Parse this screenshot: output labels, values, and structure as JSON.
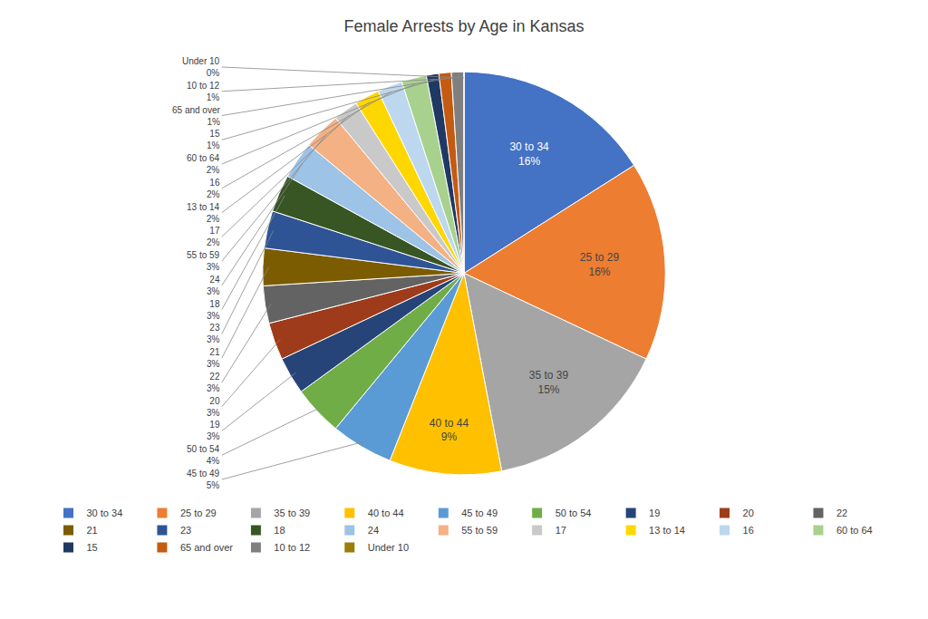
{
  "chart_data": {
    "type": "pie",
    "title": "Female Arrests by Age in Kansas",
    "categories": [
      "30 to 34",
      "25 to 29",
      "35 to 39",
      "40 to 44",
      "45 to 49",
      "50 to 54",
      "19",
      "20",
      "22",
      "21",
      "23",
      "18",
      "24",
      "55 to 59",
      "17",
      "13 to 14",
      "16",
      "60 to 64",
      "15",
      "65 and over",
      "10 to 12",
      "Under 10"
    ],
    "values": [
      16,
      16,
      15,
      9,
      5,
      4,
      3,
      3,
      3,
      3,
      3,
      3,
      3,
      3,
      2,
      2,
      2,
      2,
      1,
      1,
      1,
      0
    ],
    "value_labels": [
      "16%",
      "16%",
      "15%",
      "9%",
      "5%",
      "4%",
      "3%",
      "3%",
      "3%",
      "3%",
      "3%",
      "3%",
      "3%",
      "3%",
      "2%",
      "2%",
      "2%",
      "2%",
      "1%",
      "1%",
      "1%",
      "0%"
    ],
    "colors": [
      "#4472C4",
      "#ED7D31",
      "#A5A5A5",
      "#FFC000",
      "#5B9BD5",
      "#70AD47",
      "#264478",
      "#9E3B1B",
      "#636363",
      "#7B5C00",
      "#2F5496",
      "#375623",
      "#9DC3E6",
      "#F4B183",
      "#C9C9C9",
      "#FFD700",
      "#BDD7EE",
      "#A9D18E",
      "#1F3864",
      "#C55A11",
      "#7F7F7F",
      "#9A7D0A"
    ],
    "data_labels": true,
    "legend": "bottom"
  }
}
